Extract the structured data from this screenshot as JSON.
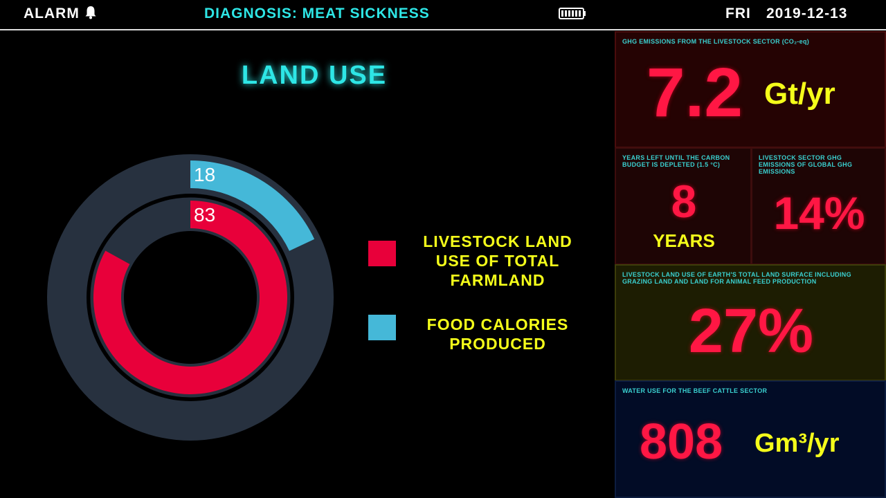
{
  "header": {
    "alarm": "ALARM",
    "diagnosis": "DIAGNOSIS: MEAT SICKNESS",
    "day": "FRI",
    "date": "2019-12-13"
  },
  "chart_data": {
    "type": "radial-bar",
    "title": "LAND USE",
    "ylim": [
      0,
      100
    ],
    "series": [
      {
        "name": "LIVESTOCK LAND USE OF TOTAL FARMLAND",
        "color": "#e8003a",
        "values": [
          83
        ]
      },
      {
        "name": "FOOD CALORIES PRODUCED",
        "color": "#45b8d8",
        "values": [
          18
        ]
      }
    ]
  },
  "panels": [
    {
      "caption": "GHG EMISSIONS FROM THE LIVESTOCK SECTOR (CO₂-eq)",
      "value": "7.2",
      "unit": "Gt/yr"
    },
    {
      "caption": "YEARS LEFT UNTIL THE CARBON BUDGET IS DEPLETED (1.5 °C)",
      "value": "8",
      "unit": "YEARS"
    },
    {
      "caption": "LIVESTOCK SECTOR GHG EMISSIONS OF GLOBAL GHG EMISSIONS",
      "value": "14%"
    },
    {
      "caption": "LIVESTOCK LAND USE OF EARTH'S TOTAL LAND SURFACE INCLUDING GRAZING LAND AND LAND FOR ANIMAL FEED PRODUCTION",
      "value": "27%"
    },
    {
      "caption": "WATER USE FOR THE BEEF CATTLE SECTOR",
      "value": "808",
      "unit": "Gm³/yr"
    }
  ]
}
